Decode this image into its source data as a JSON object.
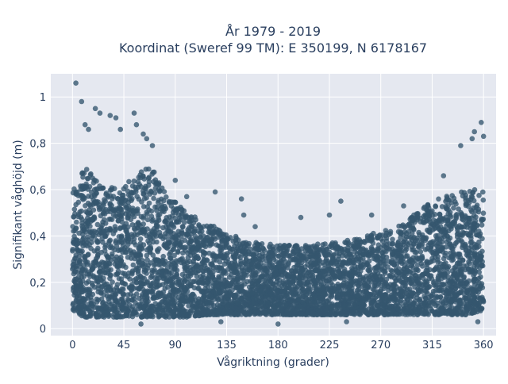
{
  "chart_data": {
    "type": "scatter",
    "title_line1": "År 1979 - 2019",
    "title_line2": "Koordinat (Sweref 99 TM): E 350199, N 6178167",
    "xlabel": "Vågriktning (grader)",
    "ylabel": "Signifikant våghöjd (m)",
    "xlim": [
      -19,
      371
    ],
    "ylim": [
      -0.03,
      1.1
    ],
    "x_ticks": [
      {
        "value": 0,
        "label": "0"
      },
      {
        "value": 45,
        "label": "45"
      },
      {
        "value": 90,
        "label": "90"
      },
      {
        "value": 135,
        "label": "135"
      },
      {
        "value": 180,
        "label": "180"
      },
      {
        "value": 225,
        "label": "225"
      },
      {
        "value": 270,
        "label": "270"
      },
      {
        "value": 315,
        "label": "315"
      },
      {
        "value": 360,
        "label": "360"
      }
    ],
    "y_ticks": [
      {
        "value": 0,
        "label": "0"
      },
      {
        "value": 0.2,
        "label": "0,2"
      },
      {
        "value": 0.4,
        "label": "0,4"
      },
      {
        "value": 0.6,
        "label": "0,6"
      },
      {
        "value": 0.8,
        "label": "0,8"
      },
      {
        "value": 1,
        "label": "1"
      }
    ],
    "grid": true,
    "series": [
      {
        "color": "#34566e",
        "envelope": {
          "direction": [
            0,
            10,
            20,
            30,
            45,
            60,
            70,
            80,
            90,
            100,
            120,
            135,
            150,
            180,
            200,
            225,
            240,
            270,
            290,
            300,
            315,
            330,
            345,
            360
          ],
          "upper": [
            0.6,
            0.7,
            0.65,
            0.62,
            0.62,
            0.68,
            0.7,
            0.6,
            0.55,
            0.5,
            0.45,
            0.42,
            0.38,
            0.36,
            0.36,
            0.37,
            0.38,
            0.42,
            0.45,
            0.5,
            0.55,
            0.58,
            0.6,
            0.6
          ],
          "lower": [
            0.08,
            0.05,
            0.05,
            0.05,
            0.05,
            0.05,
            0.05,
            0.05,
            0.05,
            0.05,
            0.06,
            0.06,
            0.06,
            0.06,
            0.06,
            0.06,
            0.06,
            0.06,
            0.06,
            0.06,
            0.06,
            0.06,
            0.06,
            0.08
          ]
        },
        "outliers": [
          [
            3,
            1.06
          ],
          [
            8,
            0.98
          ],
          [
            11,
            0.88
          ],
          [
            14,
            0.86
          ],
          [
            20,
            0.95
          ],
          [
            24,
            0.93
          ],
          [
            33,
            0.92
          ],
          [
            38,
            0.91
          ],
          [
            42,
            0.86
          ],
          [
            54,
            0.93
          ],
          [
            56,
            0.88
          ],
          [
            62,
            0.84
          ],
          [
            65,
            0.82
          ],
          [
            70,
            0.79
          ],
          [
            90,
            0.64
          ],
          [
            100,
            0.57
          ],
          [
            125,
            0.59
          ],
          [
            148,
            0.56
          ],
          [
            150,
            0.49
          ],
          [
            160,
            0.44
          ],
          [
            200,
            0.48
          ],
          [
            225,
            0.49
          ],
          [
            235,
            0.55
          ],
          [
            262,
            0.49
          ],
          [
            290,
            0.53
          ],
          [
            325,
            0.66
          ],
          [
            340,
            0.79
          ],
          [
            350,
            0.82
          ],
          [
            352,
            0.85
          ],
          [
            358,
            0.89
          ],
          [
            360,
            0.83
          ],
          [
            60,
            0.02
          ],
          [
            130,
            0.03
          ],
          [
            180,
            0.02
          ],
          [
            240,
            0.03
          ],
          [
            355,
            0.03
          ]
        ]
      }
    ]
  }
}
